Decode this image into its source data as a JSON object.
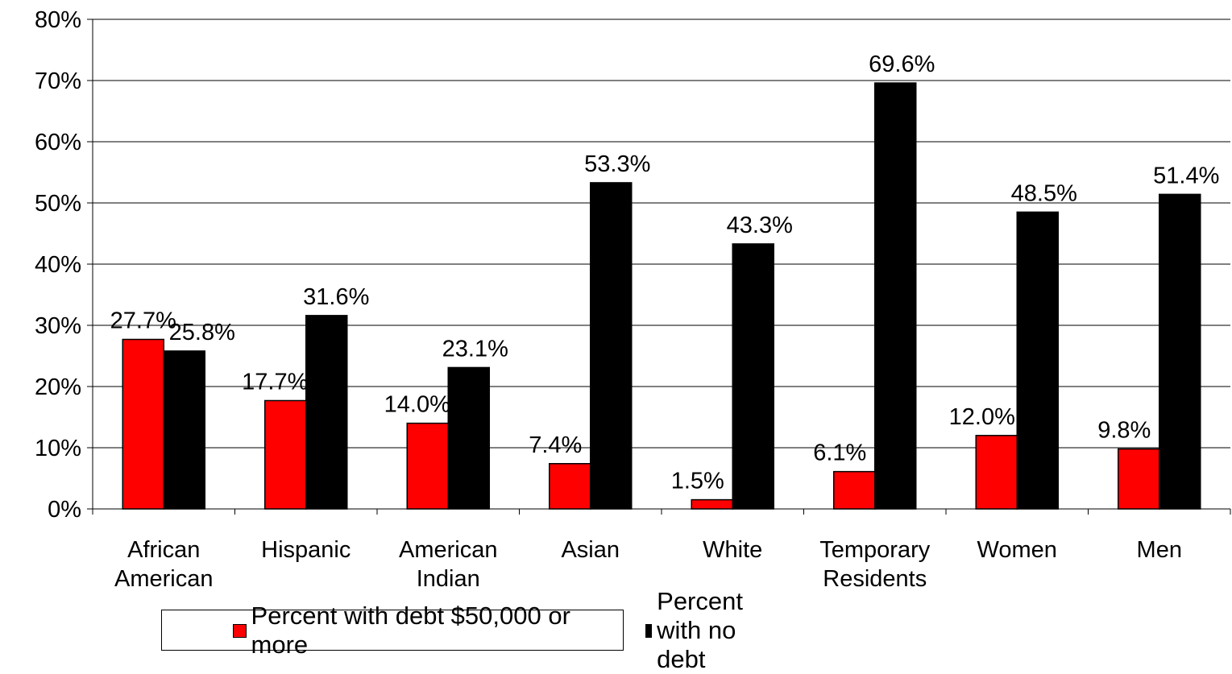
{
  "chart_data": {
    "type": "bar",
    "categories": [
      [
        "African",
        "American"
      ],
      [
        "Hispanic"
      ],
      [
        "American",
        "Indian"
      ],
      [
        "Asian"
      ],
      [
        "White"
      ],
      [
        "Temporary",
        "Residents"
      ],
      [
        "Women"
      ],
      [
        "Men"
      ]
    ],
    "series": [
      {
        "name": "Percent with debt $50,000 or more",
        "color": "#ff0000",
        "values": [
          27.7,
          17.7,
          14.0,
          7.4,
          1.5,
          6.1,
          12.0,
          9.8
        ],
        "labels": [
          "27.7%",
          "17.7%",
          "14.0%",
          "7.4%",
          "1.5%",
          "6.1%",
          "12.0%",
          "9.8%"
        ]
      },
      {
        "name": "Percent with no debt",
        "color": "#000000",
        "values": [
          25.8,
          31.6,
          23.1,
          53.3,
          43.3,
          69.6,
          48.5,
          51.4
        ],
        "labels": [
          "25.8%",
          "31.6%",
          "23.1%",
          "53.3%",
          "43.3%",
          "69.6%",
          "48.5%",
          "51.4%"
        ]
      }
    ],
    "ylim": [
      0,
      80
    ],
    "yticks": [
      "0%",
      "10%",
      "20%",
      "30%",
      "40%",
      "50%",
      "60%",
      "70%",
      "80%"
    ],
    "grid": true,
    "legend": "bottom"
  }
}
